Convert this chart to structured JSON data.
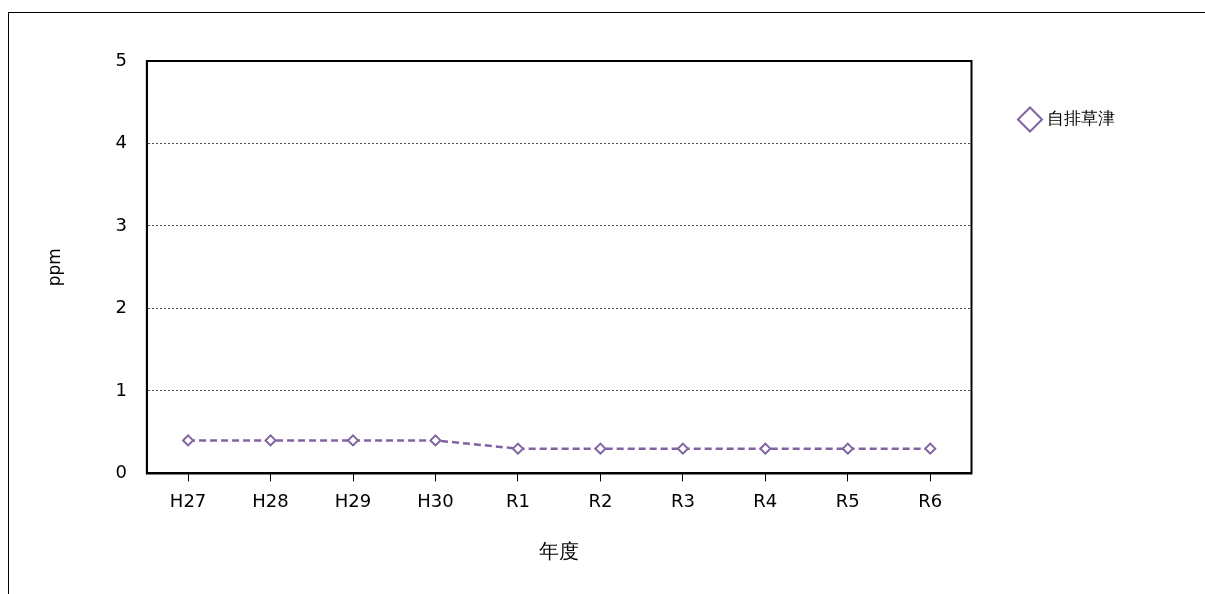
{
  "chart_data": {
    "type": "line",
    "xlabel": "年度",
    "ylabel": "ppm",
    "categories": [
      "H27",
      "H28",
      "H29",
      "H30",
      "R1",
      "R2",
      "R3",
      "R4",
      "R5",
      "R6"
    ],
    "series": [
      {
        "name": "自排草津",
        "color": "#8064a2",
        "values": [
          0.4,
          0.4,
          0.4,
          0.4,
          0.3,
          0.3,
          0.3,
          0.3,
          0.3,
          0.3
        ]
      }
    ],
    "ylim": [
      0,
      5
    ],
    "yticks": [
      0,
      1,
      2,
      3,
      4,
      5
    ],
    "grid": "y",
    "legend": "right",
    "marker": "diamond",
    "line_style": "dashed"
  }
}
